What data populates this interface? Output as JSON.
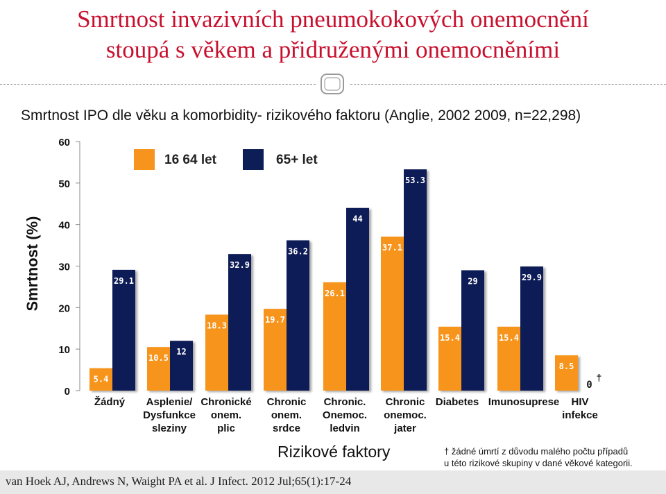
{
  "title": {
    "line1": "Smrtnost invazivních pneumokokových onemocnění",
    "line2": "stoupá s věkem a přidruženými onemocněními"
  },
  "subtitle": "Smrtnost IPO dle věku a komorbidity- rizikového faktoru (Anglie, 2002 2009, n=22,298)",
  "footnote": {
    "line1": "† žádné úmrtí z důvodu malého počtu případů",
    "line2": "u této rizikové skupiny v dané věkové kategorii."
  },
  "citation": "van Hoek AJ, Andrews N, Waight PA et al. J Infect. 2012 Jul;65(1):17-24",
  "colors": {
    "title": "#c8102e",
    "series1": "#f7941d",
    "series2": "#0d1e57"
  },
  "chart_data": {
    "type": "bar",
    "ylabel": "Smrtnost (%)",
    "xlabel": "Rizikové faktory",
    "ylim": [
      0,
      60
    ],
    "yticks": [
      "0",
      "10",
      "20",
      "30",
      "40",
      "50",
      "60"
    ],
    "legend_position": "top",
    "categories": [
      "Žádný",
      "Asplenie/\nDysfunkce\nsleziny",
      "Chronické\nonem.\nplic",
      "Chronic\nonem.\nsrdce",
      "Chronic.\nOnemoc.\nledvin",
      "Chronic\nonemoc.\njater",
      "Diabetes",
      "Imunosuprese",
      "HIV\ninfekce"
    ],
    "series": [
      {
        "name": "16 64 let",
        "values": [
          5.4,
          10.5,
          18.3,
          19.7,
          26.1,
          37.1,
          15.4,
          15.4,
          8.5
        ],
        "labels": [
          "5.4",
          "10.5",
          "18.3",
          "19.7",
          "26.1",
          "37.1",
          "15.4",
          "15.4",
          "8.5"
        ]
      },
      {
        "name": "65+ let",
        "values": [
          29.1,
          12,
          32.9,
          36.2,
          44,
          53.3,
          29,
          29.9,
          0
        ],
        "labels": [
          "29.1",
          "12",
          "32.9",
          "36.2",
          "44",
          "53.3",
          "29",
          "29.9",
          "0"
        ]
      }
    ],
    "annotations": [
      {
        "text": "†",
        "category": "HIV\ninfekce",
        "series": "65+ let"
      }
    ]
  }
}
